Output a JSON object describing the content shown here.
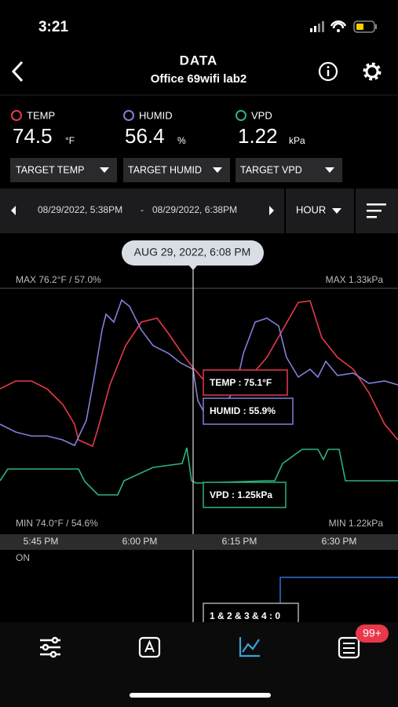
{
  "status_bar": {
    "time": "3:21"
  },
  "header": {
    "title": "DATA",
    "subtitle": "Office 69wifi lab2"
  },
  "readings": [
    {
      "label": "TEMP",
      "value": "74.5",
      "unit": "°F",
      "target": "TARGET TEMP"
    },
    {
      "label": "HUMID",
      "value": "56.4",
      "unit": "%",
      "target": "TARGET HUMID"
    },
    {
      "label": "VPD",
      "value": "1.22",
      "unit": "kPa",
      "target": "TARGET VPD"
    }
  ],
  "range": {
    "start": "08/29/2022, 5:38PM",
    "separator": "-",
    "end": "08/29/2022, 6:38PM",
    "interval": "HOUR"
  },
  "chart": {
    "cursor_time": "AUG 29, 2022, 6:08 PM",
    "max_left": "MAX 76.2°F / 57.0%",
    "max_right": "MAX 1.33kPa",
    "min_left": "MIN 74.0°F / 54.6%",
    "min_right": "MIN 1.22kPa",
    "tooltips": {
      "temp": "TEMP :  75.1°F",
      "humid": "HUMID :  55.9%",
      "vpd": "VPD :  1.25kPa"
    },
    "time_labels": [
      "5:45 PM",
      "6:00 PM",
      "6:15 PM",
      "6:30 PM"
    ],
    "state_label": "ON",
    "state_tooltip": "1 & 2 & 3 & 4 : 0"
  },
  "tab_bar": {
    "badge": "99+"
  }
}
